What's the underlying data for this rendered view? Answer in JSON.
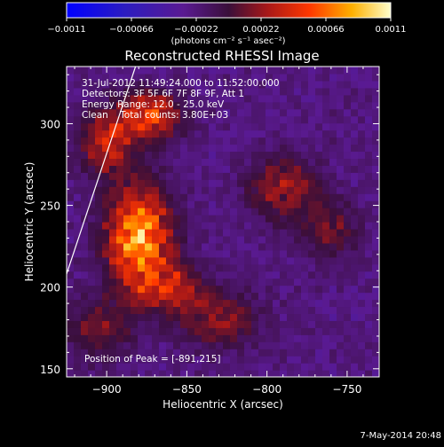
{
  "chart_data": {
    "type": "heatmap",
    "title": "Reconstructed RHESSI Image",
    "xlabel": "Heliocentric X (arcsec)",
    "ylabel": "Heliocentric Y (arcsec)",
    "xlim": [
      -925,
      -730
    ],
    "ylim": [
      145,
      335
    ],
    "x_ticks": [
      -900,
      -850,
      -800,
      -750
    ],
    "x_tick_labels": [
      "−900",
      "−850",
      "−800",
      "−750"
    ],
    "y_ticks": [
      150,
      200,
      250,
      300
    ],
    "y_tick_labels": [
      "150",
      "200",
      "250",
      "300"
    ],
    "colorbar": {
      "range": [
        -0.0011,
        0.0011
      ],
      "ticks": [
        -0.0011,
        -0.00066,
        -0.00022,
        0.00022,
        0.00066,
        0.0011
      ],
      "tick_labels": [
        "−0.0011",
        "−0.00066",
        "−0.00022",
        "0.00022",
        "0.00066",
        "0.0011"
      ],
      "units_label": "(photons cm⁻² s⁻¹ asec⁻²)"
    },
    "annotations": [
      "31-Jul-2012 11:49:24.000 to 11:52:00.000",
      "Detectors: 3F 5F 6F 7F 8F 9F, Att 1",
      "Energy Range: 12.0 - 25.0 keV",
      "Clean    Total counts: 3.80E+03"
    ],
    "peak_label": "Position of Peak = [-891,215]",
    "peak": [
      -891,
      215
    ],
    "limb_line": [
      [
        -925,
        208
      ],
      [
        -882,
        335
      ]
    ],
    "hot_regions": [
      {
        "x": -880,
        "y": 230,
        "sx": 14,
        "sy": 22,
        "amp": 1.0
      },
      {
        "x": -872,
        "y": 305,
        "sx": 13,
        "sy": 10,
        "amp": 0.7
      },
      {
        "x": -900,
        "y": 290,
        "sx": 12,
        "sy": 14,
        "amp": 0.55
      },
      {
        "x": -858,
        "y": 200,
        "sx": 14,
        "sy": 10,
        "amp": 0.45
      },
      {
        "x": -830,
        "y": 180,
        "sx": 18,
        "sy": 12,
        "amp": 0.4
      },
      {
        "x": -790,
        "y": 260,
        "sx": 15,
        "sy": 14,
        "amp": 0.45
      },
      {
        "x": -760,
        "y": 235,
        "sx": 12,
        "sy": 12,
        "amp": 0.35
      },
      {
        "x": -905,
        "y": 175,
        "sx": 14,
        "sy": 14,
        "amp": 0.35
      }
    ]
  },
  "footer_date": "7-May-2014 20:48"
}
